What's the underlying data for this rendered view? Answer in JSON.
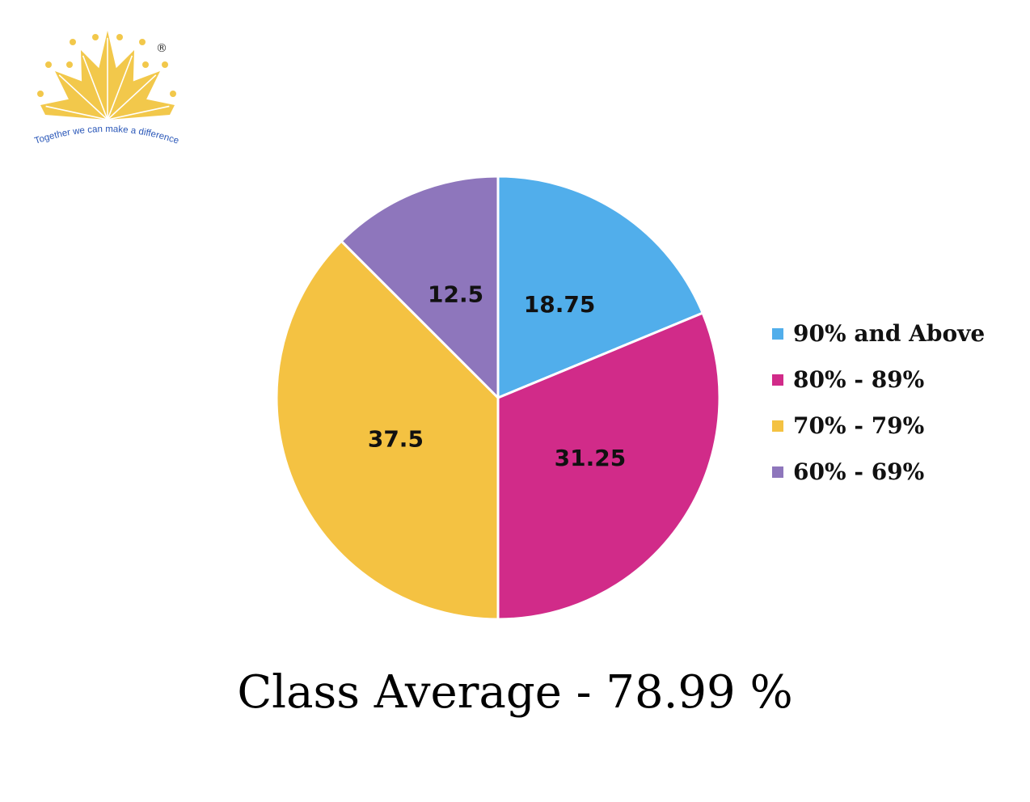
{
  "logo": {
    "tagline": "Together we can make a difference",
    "registered_mark": "®",
    "color": "#F2C84B",
    "tagline_color": "#2A57B8"
  },
  "chart_data": {
    "type": "pie",
    "categories": [
      "90% and Above",
      "80% - 89%",
      "70% - 79%",
      "60% - 69%"
    ],
    "values": [
      18.75,
      31.25,
      37.5,
      12.5
    ],
    "data_labels": [
      "18.75",
      "31.25",
      "37.5",
      "12.5"
    ],
    "colors": [
      "#51AEEB",
      "#D12B89",
      "#F4C242",
      "#8E76BC"
    ],
    "legend_position": "right",
    "start_angle": "12 o'clock, clockwise"
  },
  "summary": {
    "class_average": "Class Average - 78.99 %"
  }
}
